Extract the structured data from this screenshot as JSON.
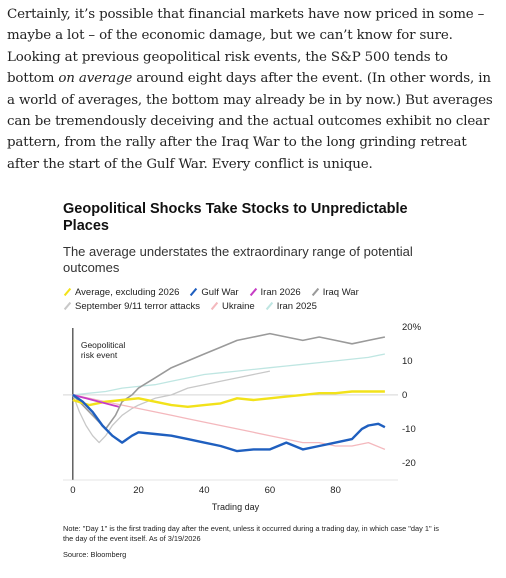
{
  "article": {
    "p1": "Certainly, it’s possible that financial markets have now priced in some – maybe a lot – of the economic damage, but we can’t know for sure. Looking at previous geopolitical risk events, the S&P 500 tends to bottom ",
    "p1_em": "on average",
    "p2": " around eight days after the event. (In other words, in a world of averages, the bottom may already be in by now.) But averages can be tremendously deceiving and the actual outcomes exhibit no clear pattern, from the rally after the Iraq War to the long grinding retreat after the start of the Gulf War. Every conflict is unique."
  },
  "chart_data": {
    "type": "line",
    "title": "Geopolitical Shocks Take Stocks to Unpredictable Places",
    "subtitle": "The average understates the extraordinary range of potential outcomes",
    "xlabel": "Trading day",
    "ylabel": "",
    "xlim": [
      -3,
      99
    ],
    "ylim": [
      -25,
      22
    ],
    "x_ticks": [
      "0",
      "20",
      "40",
      "60",
      "80"
    ],
    "y_ticks": [
      "20%",
      "10",
      "0",
      "-10",
      "-20"
    ],
    "annotation": "Geopolitical risk event",
    "colors": {
      "average": "#f2e21a",
      "gulf_war": "#1f5fbf",
      "iran_2026": "#c63dc4",
      "iraq_war": "#9a9a9a",
      "sept_11": "#c8c8c8",
      "ukraine": "#f4b8bd",
      "iran_2025": "#bfe6e2"
    },
    "series": [
      {
        "name": "Average, excluding 2026",
        "key": "average",
        "x": [
          0,
          5,
          10,
          15,
          20,
          25,
          30,
          35,
          40,
          45,
          50,
          55,
          60,
          65,
          70,
          75,
          80,
          85,
          90,
          95
        ],
        "values": [
          -1.5,
          -3,
          -2,
          -1.5,
          -1,
          -2,
          -3,
          -3.5,
          -3,
          -2.5,
          -1,
          -1.5,
          -1,
          -0.5,
          0,
          0.5,
          0.5,
          1,
          1,
          1
        ]
      },
      {
        "name": "Gulf War",
        "key": "gulf_war",
        "x": [
          0,
          3,
          6,
          9,
          12,
          15,
          18,
          20,
          25,
          30,
          35,
          40,
          45,
          50,
          55,
          60,
          65,
          70,
          75,
          80,
          85,
          88,
          90,
          93,
          95
        ],
        "values": [
          0,
          -2,
          -5,
          -9,
          -12,
          -14,
          -12,
          -11,
          -11.5,
          -12,
          -13,
          -14,
          -15,
          -16.5,
          -16,
          -16,
          -14,
          -16,
          -15,
          -14,
          -13,
          -10,
          -9,
          -8.5,
          -9.5
        ]
      },
      {
        "name": "Iran 2026",
        "key": "iran_2026",
        "x": [
          0,
          2,
          4,
          6,
          8,
          10,
          12,
          14
        ],
        "values": [
          0,
          -0.5,
          -1,
          -1.5,
          -2,
          -2.5,
          -3,
          -3.5
        ]
      },
      {
        "name": "Iraq War",
        "key": "iraq_war",
        "x": [
          0,
          3,
          5,
          8,
          10,
          13,
          15,
          18,
          20,
          25,
          30,
          35,
          40,
          45,
          50,
          55,
          60,
          65,
          70,
          75,
          80,
          85,
          90,
          95
        ],
        "values": [
          0,
          -3,
          -5,
          -8,
          -10,
          -6,
          -2,
          0,
          2,
          5,
          8,
          10,
          12,
          14,
          16,
          17,
          18,
          17,
          16,
          17,
          16,
          15,
          16,
          17
        ]
      },
      {
        "name": "September 9/11 terror attacks",
        "key": "sept_11",
        "x": [
          0,
          2,
          4,
          6,
          8,
          10,
          12,
          15,
          18,
          20,
          25,
          30,
          35,
          40,
          45,
          50,
          55,
          60
        ],
        "values": [
          0,
          -5,
          -9,
          -12,
          -14,
          -12,
          -9,
          -6,
          -4,
          -3,
          -1,
          0,
          2,
          3,
          4,
          5,
          6,
          7
        ]
      },
      {
        "name": "Ukraine",
        "key": "ukraine",
        "x": [
          0,
          5,
          10,
          15,
          20,
          25,
          30,
          35,
          40,
          45,
          50,
          55,
          60,
          65,
          70,
          75,
          80,
          85,
          90,
          95
        ],
        "values": [
          0,
          -1,
          -2,
          -3,
          -4,
          -5,
          -6,
          -7,
          -8,
          -9,
          -10,
          -11,
          -12,
          -13,
          -14,
          -14,
          -15,
          -15,
          -14,
          -16
        ]
      },
      {
        "name": "Iran 2025",
        "key": "iran_2025",
        "x": [
          0,
          5,
          10,
          15,
          20,
          25,
          30,
          35,
          40,
          45,
          50,
          55,
          60,
          65,
          70,
          75,
          80,
          85,
          90,
          95
        ],
        "values": [
          0,
          0.5,
          1,
          2,
          2.5,
          3,
          4,
          5,
          6,
          6.5,
          7,
          7.5,
          8,
          8.5,
          9,
          9.5,
          10,
          10.5,
          11,
          12
        ]
      }
    ]
  },
  "note": "Note: \"Day 1\" is the first trading day after the event, unless it occurred during a trading day, in which case \"day 1\" is the day of the event itself. As of 3/19/2026",
  "source": "Source: Bloomberg"
}
